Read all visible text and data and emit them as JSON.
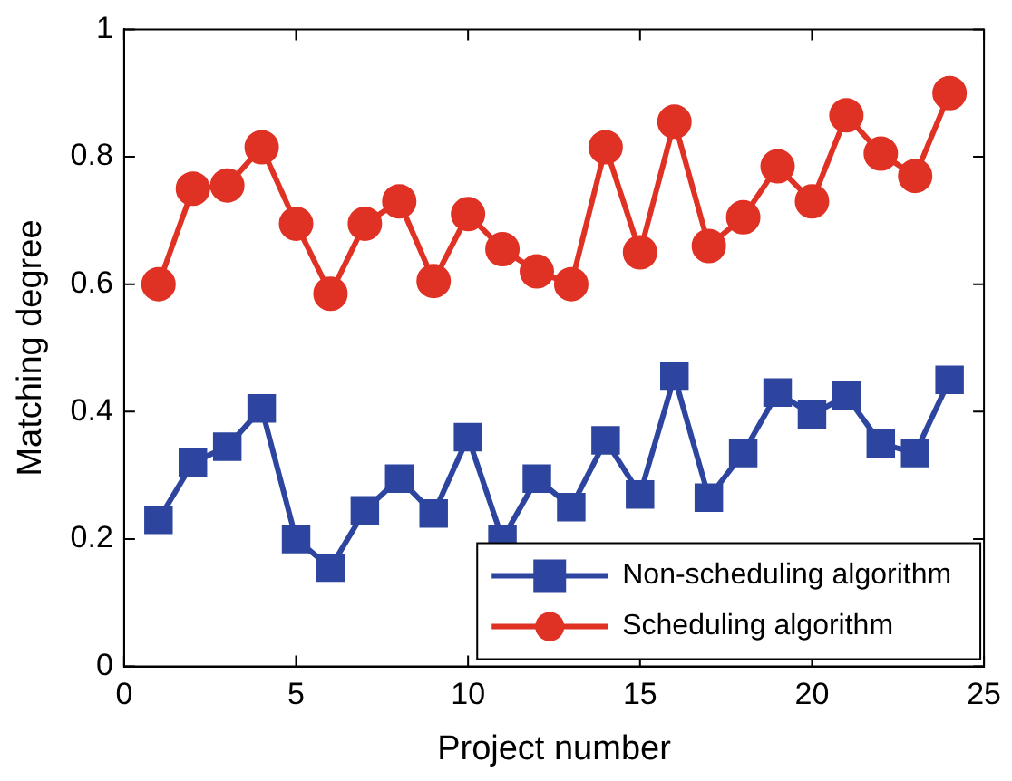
{
  "chart_data": {
    "type": "line",
    "xlabel": "Project number",
    "ylabel": "Matching degree",
    "x": [
      1,
      2,
      3,
      4,
      5,
      6,
      7,
      8,
      9,
      10,
      11,
      12,
      13,
      14,
      15,
      16,
      17,
      18,
      19,
      20,
      21,
      22,
      23,
      24
    ],
    "series": [
      {
        "name": "Non-scheduling algorithm",
        "color": "#2e45a0",
        "marker": "square",
        "values": [
          0.23,
          0.32,
          0.345,
          0.405,
          0.2,
          0.155,
          0.245,
          0.295,
          0.24,
          0.36,
          0.2,
          0.295,
          0.25,
          0.355,
          0.27,
          0.455,
          0.265,
          0.335,
          0.43,
          0.395,
          0.425,
          0.35,
          0.335,
          0.45
        ]
      },
      {
        "name": "Scheduling algorithm",
        "color": "#e03224",
        "marker": "circle",
        "values": [
          0.6,
          0.75,
          0.755,
          0.815,
          0.695,
          0.585,
          0.695,
          0.73,
          0.605,
          0.71,
          0.655,
          0.62,
          0.6,
          0.815,
          0.65,
          0.855,
          0.66,
          0.705,
          0.785,
          0.73,
          0.865,
          0.805,
          0.77,
          0.9
        ]
      }
    ],
    "xlim": [
      0,
      25
    ],
    "xticks": [
      0,
      5,
      10,
      15,
      20,
      25
    ],
    "ylim": [
      0,
      1
    ],
    "yticks": [
      0,
      0.2,
      0.4,
      0.6,
      0.8,
      1
    ],
    "grid": false,
    "legend": "bottom right",
    "line_style": "solid"
  }
}
